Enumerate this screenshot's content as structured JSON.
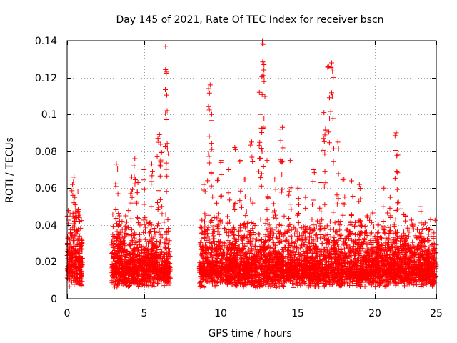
{
  "chart_data": {
    "type": "scatter",
    "title": "Day 145 of 2021, Rate Of TEC Index for receiver bscn",
    "xlabel": "GPS time / hours",
    "ylabel": "ROTI / TECUs",
    "xlim": [
      0,
      24
    ],
    "ylim": [
      0,
      0.14
    ],
    "xticks": [
      0,
      5,
      10,
      15,
      20,
      25
    ],
    "yticks": [
      0,
      0.02,
      0.04,
      0.06,
      0.08,
      0.1,
      0.12,
      0.14
    ],
    "grid": true,
    "marker": "plus",
    "series": [
      {
        "name": "ROTI",
        "color": "#ff0000",
        "approximate_points": [
          [
            0.1,
            0.018
          ],
          [
            0.2,
            0.025
          ],
          [
            0.3,
            0.035
          ],
          [
            0.35,
            0.062
          ],
          [
            0.45,
            0.066
          ],
          [
            0.5,
            0.055
          ],
          [
            0.6,
            0.045
          ],
          [
            0.7,
            0.058
          ],
          [
            0.8,
            0.03
          ],
          [
            0.9,
            0.015
          ],
          [
            3.2,
            0.073
          ],
          [
            3.3,
            0.057
          ],
          [
            3.4,
            0.045
          ],
          [
            3.8,
            0.045
          ],
          [
            4.2,
            0.066
          ],
          [
            4.4,
            0.076
          ],
          [
            4.6,
            0.063
          ],
          [
            5.0,
            0.07
          ],
          [
            5.5,
            0.073
          ],
          [
            5.9,
            0.087
          ],
          [
            6.0,
            0.089
          ],
          [
            6.1,
            0.08
          ],
          [
            6.4,
            0.137
          ],
          [
            6.45,
            0.123
          ],
          [
            6.5,
            0.102
          ],
          [
            8.9,
            0.062
          ],
          [
            9.2,
            0.114
          ],
          [
            9.3,
            0.116
          ],
          [
            9.4,
            0.1
          ],
          [
            9.8,
            0.065
          ],
          [
            10.0,
            0.075
          ],
          [
            10.5,
            0.07
          ],
          [
            10.9,
            0.082
          ],
          [
            11.3,
            0.075
          ],
          [
            11.6,
            0.065
          ],
          [
            12.0,
            0.085
          ],
          [
            12.5,
            0.112
          ],
          [
            12.6,
            0.1
          ],
          [
            12.7,
            0.14
          ],
          [
            12.75,
            0.138
          ],
          [
            12.8,
            0.127
          ],
          [
            13.0,
            0.075
          ],
          [
            13.5,
            0.065
          ],
          [
            13.9,
            0.092
          ],
          [
            14.0,
            0.093
          ],
          [
            14.5,
            0.075
          ],
          [
            15.0,
            0.06
          ],
          [
            15.5,
            0.055
          ],
          [
            16.0,
            0.07
          ],
          [
            16.5,
            0.063
          ],
          [
            16.7,
            0.101
          ],
          [
            16.8,
            0.092
          ],
          [
            17.0,
            0.126
          ],
          [
            17.2,
            0.128
          ],
          [
            17.3,
            0.12
          ],
          [
            17.6,
            0.085
          ],
          [
            18.0,
            0.065
          ],
          [
            18.5,
            0.064
          ],
          [
            19.0,
            0.062
          ],
          [
            19.5,
            0.045
          ],
          [
            20.2,
            0.04
          ],
          [
            20.6,
            0.06
          ],
          [
            21.0,
            0.055
          ],
          [
            21.4,
            0.09
          ],
          [
            21.5,
            0.078
          ],
          [
            22.0,
            0.045
          ],
          [
            22.5,
            0.04
          ],
          [
            23.0,
            0.05
          ],
          [
            23.5,
            0.035
          ],
          [
            23.8,
            0.03
          ]
        ],
        "dense_segments": [
          {
            "x_range": [
              0.0,
              1.0
            ],
            "y_range": [
              0.006,
              0.05
            ]
          },
          {
            "x_range": [
              2.9,
              6.7
            ],
            "y_range": [
              0.006,
              0.045
            ]
          },
          {
            "x_range": [
              8.6,
              24.0
            ],
            "y_range": [
              0.006,
              0.045
            ]
          }
        ]
      }
    ]
  }
}
